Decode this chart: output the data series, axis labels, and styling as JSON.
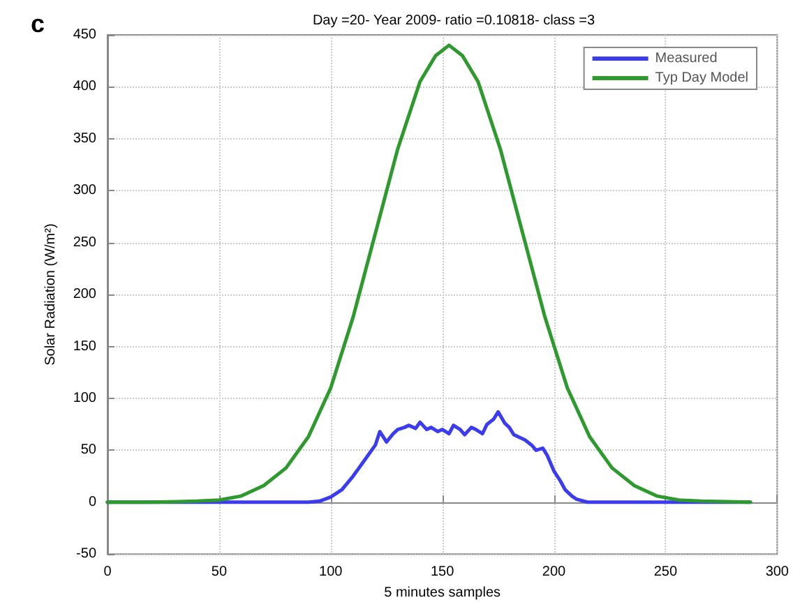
{
  "chart_data": {
    "type": "line",
    "title": "Day =20- Year 2009- ratio =0.10818- class =3",
    "xlabel": "5 minutes samples",
    "ylabel": "Solar Radiation (W/m²)",
    "annotations": [
      "c"
    ],
    "series": [
      {
        "name": "Measured",
        "color": "#3b3bf0",
        "x": [
          0,
          90,
          95,
          100,
          105,
          110,
          115,
          120,
          122,
          125,
          128,
          130,
          133,
          135,
          138,
          140,
          143,
          145,
          148,
          150,
          153,
          155,
          158,
          160,
          163,
          165,
          168,
          170,
          173,
          175,
          178,
          180,
          182,
          185,
          187,
          190,
          192,
          195,
          197,
          200,
          203,
          205,
          208,
          210,
          215,
          250,
          288
        ],
        "values": [
          0,
          0,
          1,
          5,
          12,
          25,
          40,
          55,
          68,
          58,
          66,
          70,
          72,
          74,
          71,
          77,
          70,
          72,
          68,
          70,
          66,
          74,
          70,
          65,
          72,
          70,
          66,
          75,
          80,
          87,
          76,
          72,
          65,
          62,
          60,
          55,
          50,
          52,
          45,
          30,
          20,
          12,
          6,
          3,
          0,
          0,
          0
        ]
      },
      {
        "name": "Typ Day Model",
        "color": "#2e9a2e",
        "x": [
          0,
          20,
          40,
          50,
          60,
          70,
          80,
          90,
          100,
          110,
          120,
          130,
          140,
          147,
          153,
          159,
          166,
          176,
          186,
          196,
          206,
          216,
          226,
          236,
          246,
          256,
          266,
          288
        ],
        "values": [
          0,
          0,
          1,
          2,
          6,
          16,
          33,
          63,
          110,
          178,
          259,
          340,
          405,
          430,
          440,
          430,
          405,
          340,
          259,
          178,
          110,
          63,
          33,
          16,
          6,
          2,
          1,
          0
        ]
      }
    ],
    "xlim": [
      0,
      300
    ],
    "xticks": [
      0,
      50,
      100,
      150,
      200,
      250,
      300
    ],
    "ylim": [
      -50,
      450
    ],
    "yticks": [
      -50,
      0,
      50,
      100,
      150,
      200,
      250,
      300,
      350,
      400,
      450
    ],
    "grid": true,
    "legend": "top right",
    "marker": "none",
    "line_style": "solid"
  }
}
